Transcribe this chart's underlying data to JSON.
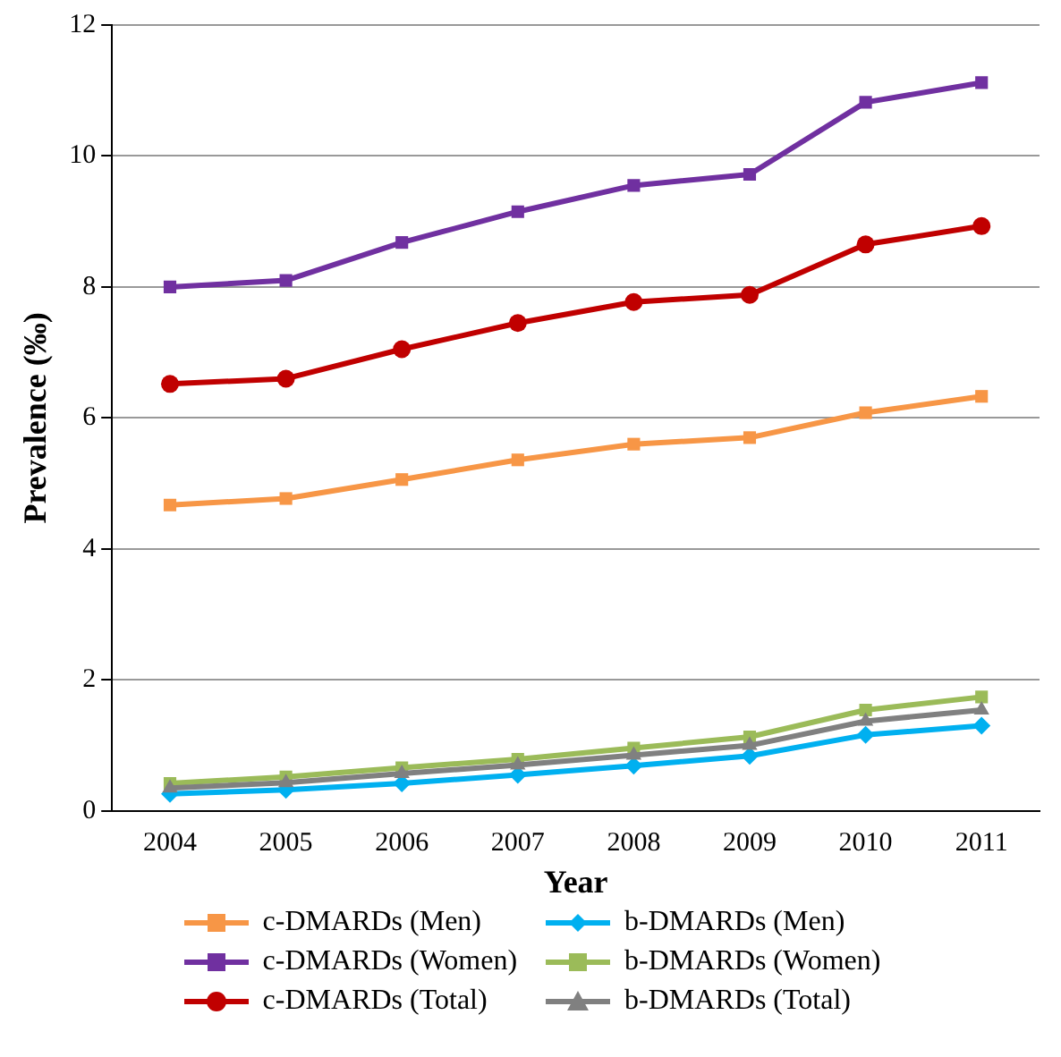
{
  "chart_data": {
    "type": "line",
    "xlabel": "Year",
    "ylabel": "Prevalence (‰)",
    "categories": [
      "2004",
      "2005",
      "2006",
      "2007",
      "2008",
      "2009",
      "2010",
      "2011"
    ],
    "ylim": [
      0,
      12
    ],
    "yticks": [
      0,
      2,
      4,
      6,
      8,
      10,
      12
    ],
    "grid": "y",
    "legend": "bottom",
    "series": [
      {
        "name": "c-DMARDs (Men)",
        "color": "#f79646",
        "marker": "square",
        "values": [
          4.67,
          4.77,
          5.06,
          5.36,
          5.6,
          5.7,
          6.08,
          6.33
        ]
      },
      {
        "name": "c-DMARDs (Women)",
        "color": "#7030a0",
        "marker": "square",
        "values": [
          8.0,
          8.1,
          8.68,
          9.15,
          9.55,
          9.72,
          10.82,
          11.12
        ]
      },
      {
        "name": "c-DMARDs (Total)",
        "color": "#c00000",
        "marker": "circle",
        "values": [
          6.52,
          6.6,
          7.05,
          7.45,
          7.77,
          7.88,
          8.65,
          8.93
        ]
      },
      {
        "name": "b-DMARDs (Men)",
        "color": "#00b0f0",
        "marker": "diamond",
        "values": [
          0.26,
          0.32,
          0.42,
          0.55,
          0.69,
          0.84,
          1.16,
          1.3
        ]
      },
      {
        "name": "b-DMARDs (Women)",
        "color": "#9bbb59",
        "marker": "square",
        "values": [
          0.42,
          0.52,
          0.66,
          0.79,
          0.96,
          1.13,
          1.54,
          1.74
        ]
      },
      {
        "name": "b-DMARDs (Total)",
        "color": "#808080",
        "marker": "triangle",
        "values": [
          0.35,
          0.43,
          0.57,
          0.7,
          0.85,
          1.0,
          1.37,
          1.54
        ]
      }
    ]
  }
}
